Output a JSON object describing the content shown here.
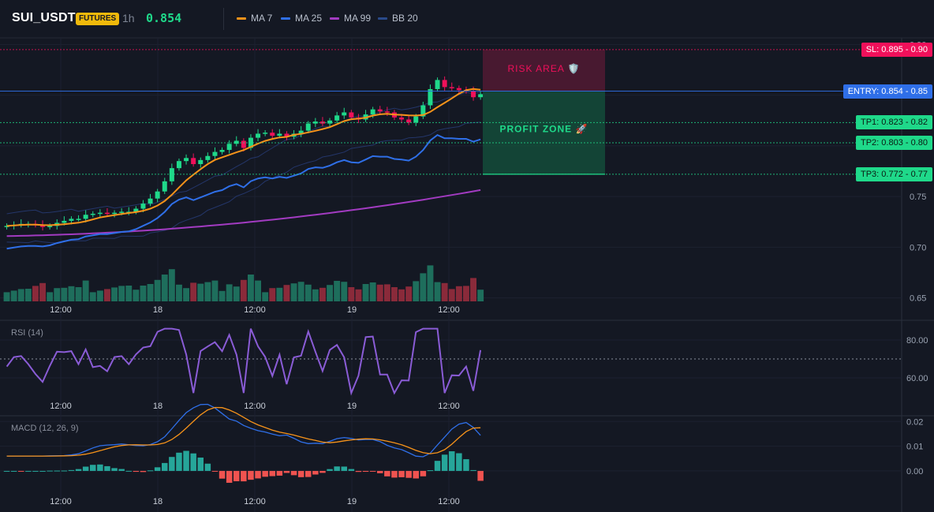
{
  "header": {
    "symbol": "SUI_USDT",
    "badge": "FUTURES",
    "timeframe": "1h",
    "price": "0.854",
    "legend": [
      {
        "label": "MA 7",
        "color": "#f7931a"
      },
      {
        "label": "MA 25",
        "color": "#2f6fe8"
      },
      {
        "label": "MA 99",
        "color": "#a23bc1"
      },
      {
        "label": "BB 20",
        "color": "#2a4a8a"
      }
    ]
  },
  "colors": {
    "up": "#1fd98a",
    "down": "#f0105a",
    "vol_up": "#1e6e5c",
    "vol_down": "#8a2a3a",
    "rsi": "#8a5cd6",
    "macd": "#2f6fe8",
    "signal": "#f7931a",
    "hist_up": "#26a69a",
    "hist_down": "#ef5350"
  },
  "zones": {
    "risk_label": "RISK AREA 🛡️",
    "profit_label": "PROFIT ZONE 🚀"
  },
  "price_labels": [
    {
      "text": "SL: 0.895 - 0.90",
      "price": 0.895,
      "bg": "#f0105a",
      "fg": "#ffffff"
    },
    {
      "text": "ENTRY: 0.854 - 0.85",
      "price": 0.854,
      "bg": "#2f6fe8",
      "fg": "#ffffff"
    },
    {
      "text": "TP1: 0.823 - 0.82",
      "price": 0.823,
      "bg": "#1fd98a",
      "fg": "#0b1a12"
    },
    {
      "text": "TP2: 0.803 - 0.80",
      "price": 0.803,
      "bg": "#1fd98a",
      "fg": "#0b1a12"
    },
    {
      "text": "TP3: 0.772 - 0.77",
      "price": 0.772,
      "bg": "#1fd98a",
      "fg": "#0b1a12"
    }
  ],
  "chart_data": [
    {
      "type": "candlestick",
      "ylim": [
        0.645,
        0.905
      ],
      "y_ticks": [
        "0.65",
        "0.70",
        "0.75",
        "0.90"
      ],
      "x_ticks": [
        "12:00",
        "18",
        "12:00",
        "19",
        "12:00"
      ],
      "close": [
        0.721,
        0.722,
        0.723,
        0.723,
        0.722,
        0.72,
        0.721,
        0.724,
        0.726,
        0.728,
        0.728,
        0.732,
        0.733,
        0.734,
        0.733,
        0.734,
        0.735,
        0.735,
        0.738,
        0.743,
        0.748,
        0.755,
        0.765,
        0.778,
        0.785,
        0.788,
        0.782,
        0.786,
        0.79,
        0.794,
        0.796,
        0.802,
        0.805,
        0.798,
        0.808,
        0.812,
        0.813,
        0.81,
        0.812,
        0.809,
        0.812,
        0.815,
        0.822,
        0.824,
        0.822,
        0.825,
        0.83,
        0.833,
        0.828,
        0.826,
        0.831,
        0.836,
        0.834,
        0.833,
        0.828,
        0.826,
        0.823,
        0.829,
        0.84,
        0.856,
        0.865,
        0.858,
        0.857,
        0.855,
        0.854,
        0.848,
        0.851
      ],
      "rsi": {
        "ylim": [
          50,
          90
        ],
        "ticks": [
          "80.00",
          "60.00"
        ],
        "title": "RSI (14)",
        "level": 70
      },
      "macd": {
        "ylim": [
          -0.008,
          0.022
        ],
        "ticks": [
          "0.02",
          "0.01",
          "0.00"
        ],
        "title": "MACD (12, 26, 9)"
      }
    }
  ]
}
